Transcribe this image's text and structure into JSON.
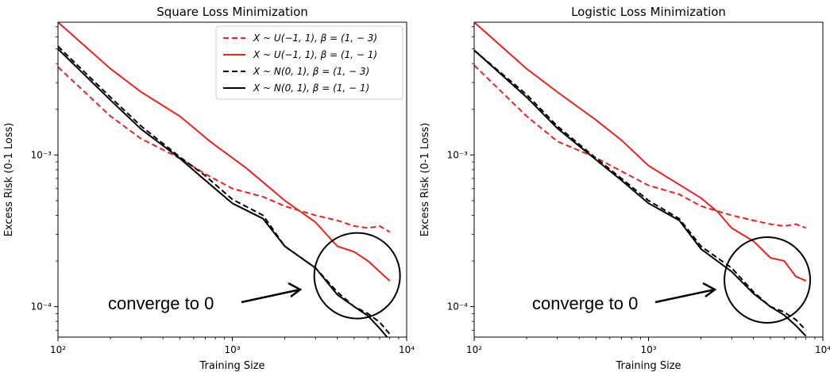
{
  "chart_data": [
    {
      "type": "line",
      "title": "Square Loss Minimization",
      "xlabel": "Training Size",
      "ylabel": "Excess Risk (0-1 Loss)",
      "xscale": "log",
      "yscale": "log",
      "xlim": [
        100,
        10000
      ],
      "ylim": [
        6.3e-05,
        0.0075
      ],
      "x_ticks": [
        {
          "value": 100,
          "label": "10²"
        },
        {
          "value": 1000,
          "label": "10³"
        },
        {
          "value": 10000,
          "label": "10⁴"
        }
      ],
      "y_ticks": [
        {
          "value": 0.0001,
          "label": "10⁻⁴"
        },
        {
          "value": 0.001,
          "label": "10⁻³"
        }
      ],
      "legend": "upper right",
      "series": [
        {
          "name": "X ~ U(−1, 1), β = (1, − 3)",
          "color": "#e8231f",
          "dash": "dashed",
          "points": [
            [
              100,
              0.0038
            ],
            [
              200,
              0.0018
            ],
            [
              300,
              0.00128
            ],
            [
              500,
              0.00095
            ],
            [
              700,
              0.00075
            ],
            [
              1000,
              0.0006
            ],
            [
              1500,
              0.00053
            ],
            [
              2000,
              0.00046
            ],
            [
              3000,
              0.0004
            ],
            [
              4000,
              0.00037
            ],
            [
              5000,
              0.00034
            ],
            [
              6000,
              0.00033
            ],
            [
              7000,
              0.00034
            ],
            [
              8000,
              0.00031
            ]
          ]
        },
        {
          "name": "X ~ U(−1, 1), β = (1, − 1)",
          "color": "#e8231f",
          "dash": "solid",
          "points": [
            [
              100,
              0.0075
            ],
            [
              200,
              0.0037
            ],
            [
              300,
              0.0026
            ],
            [
              500,
              0.0018
            ],
            [
              750,
              0.00122
            ],
            [
              1200,
              0.00082
            ],
            [
              2000,
              0.0005
            ],
            [
              3000,
              0.00036
            ],
            [
              4000,
              0.00025
            ],
            [
              5000,
              0.00023
            ],
            [
              6000,
              0.0002
            ],
            [
              7000,
              0.00017
            ],
            [
              8000,
              0.000148
            ]
          ]
        },
        {
          "name": "X ~ N(0, 1), β = (1, − 3)",
          "color": "#000000",
          "dash": "dashed",
          "points": [
            [
              100,
              0.0052
            ],
            [
              200,
              0.0024
            ],
            [
              300,
              0.00155
            ],
            [
              500,
              0.00097
            ],
            [
              700,
              0.00073
            ],
            [
              1000,
              0.00051
            ],
            [
              1500,
              0.0004
            ],
            [
              2000,
              0.00025
            ],
            [
              3000,
              0.00018
            ],
            [
              4000,
              0.000125
            ],
            [
              5000,
              0.0001
            ],
            [
              6000,
              9e-05
            ],
            [
              7000,
              7.9e-05
            ],
            [
              8000,
              6.6e-05
            ]
          ]
        },
        {
          "name": "X ~ N(0, 1), β = (1, − 1)",
          "color": "#000000",
          "dash": "solid",
          "points": [
            [
              100,
              0.005
            ],
            [
              200,
              0.0023
            ],
            [
              300,
              0.00148
            ],
            [
              500,
              0.00095
            ],
            [
              700,
              0.00068
            ],
            [
              1000,
              0.00048
            ],
            [
              1500,
              0.00038
            ],
            [
              2000,
              0.00025
            ],
            [
              3000,
              0.00018
            ],
            [
              4000,
              0.00012
            ],
            [
              5000,
              0.0001
            ],
            [
              6000,
              8.7e-05
            ],
            [
              7000,
              7.2e-05
            ],
            [
              8000,
              6e-05
            ]
          ]
        }
      ],
      "annotation": {
        "text": "converge  to 0",
        "circle_center": [
          5200,
          0.00016
        ]
      }
    },
    {
      "type": "line",
      "title": "Logistic Loss Minimization",
      "xlabel": "Training Size",
      "ylabel": "Excess Risk (0-1 Loss)",
      "xscale": "log",
      "yscale": "log",
      "xlim": [
        100,
        10000
      ],
      "ylim": [
        6.3e-05,
        0.0075
      ],
      "x_ticks": [
        {
          "value": 100,
          "label": "10²"
        },
        {
          "value": 1000,
          "label": "10³"
        },
        {
          "value": 10000,
          "label": "10⁴"
        }
      ],
      "y_ticks": [
        {
          "value": 0.0001,
          "label": "10⁻⁴"
        },
        {
          "value": 0.001,
          "label": "10⁻³"
        }
      ],
      "series": [
        {
          "name": "X ~ U(−1, 1), β = (1, − 3)",
          "color": "#e8231f",
          "dash": "dashed",
          "points": [
            [
              100,
              0.0039
            ],
            [
              200,
              0.0018
            ],
            [
              300,
              0.00123
            ],
            [
              500,
              0.00096
            ],
            [
              700,
              0.00078
            ],
            [
              1000,
              0.00063
            ],
            [
              1500,
              0.00055
            ],
            [
              2000,
              0.00046
            ],
            [
              3000,
              0.0004
            ],
            [
              4000,
              0.00037
            ],
            [
              5000,
              0.00035
            ],
            [
              6000,
              0.00034
            ],
            [
              7000,
              0.00035
            ],
            [
              8000,
              0.00033
            ]
          ]
        },
        {
          "name": "X ~ U(−1, 1), β = (1, − 1)",
          "color": "#e8231f",
          "dash": "solid",
          "points": [
            [
              100,
              0.0075
            ],
            [
              200,
              0.0037
            ],
            [
              300,
              0.0026
            ],
            [
              500,
              0.0017
            ],
            [
              700,
              0.00125
            ],
            [
              1000,
              0.00085
            ],
            [
              2000,
              0.00052
            ],
            [
              2500,
              0.00042
            ],
            [
              3000,
              0.00033
            ],
            [
              4000,
              0.00027
            ],
            [
              5000,
              0.00021
            ],
            [
              6000,
              0.0002
            ],
            [
              7000,
              0.000158
            ],
            [
              8000,
              0.000148
            ]
          ]
        },
        {
          "name": "X ~ N(0, 1), β = (1, − 3)",
          "color": "#000000",
          "dash": "dashed",
          "points": [
            [
              100,
              0.0049
            ],
            [
              200,
              0.0025
            ],
            [
              300,
              0.00155
            ],
            [
              500,
              0.00095
            ],
            [
              700,
              0.0007
            ],
            [
              1000,
              0.0005
            ],
            [
              1500,
              0.00038
            ],
            [
              2000,
              0.00025
            ],
            [
              3000,
              0.00018
            ],
            [
              4000,
              0.000125
            ],
            [
              5000,
              0.0001
            ],
            [
              6000,
              9.2e-05
            ],
            [
              7000,
              8.2e-05
            ],
            [
              8000,
              7e-05
            ]
          ]
        },
        {
          "name": "X ~ N(0, 1), β = (1, − 1)",
          "color": "#000000",
          "dash": "solid",
          "points": [
            [
              100,
              0.0049
            ],
            [
              200,
              0.0024
            ],
            [
              300,
              0.0015
            ],
            [
              500,
              0.00093
            ],
            [
              700,
              0.00068
            ],
            [
              1000,
              0.00048
            ],
            [
              1500,
              0.00037
            ],
            [
              2000,
              0.00024
            ],
            [
              3000,
              0.00017
            ],
            [
              4000,
              0.000122
            ],
            [
              5000,
              0.0001
            ],
            [
              6000,
              8.8e-05
            ],
            [
              7000,
              7.5e-05
            ],
            [
              8000,
              6.4e-05
            ]
          ]
        }
      ],
      "annotation": {
        "text": "converge to 0",
        "circle_center": [
          4800,
          0.00015
        ]
      }
    }
  ]
}
